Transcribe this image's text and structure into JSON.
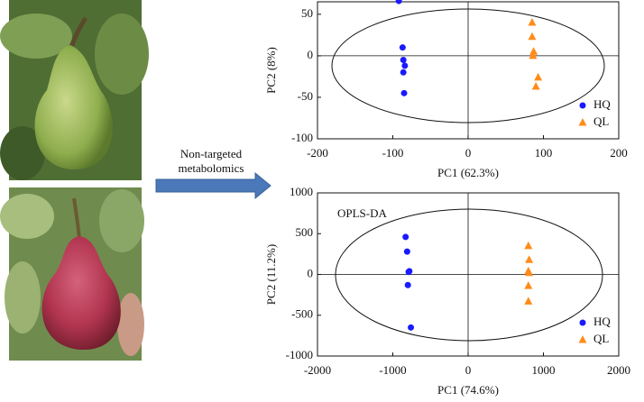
{
  "arrow_label": [
    "Non-targeted",
    "metabolomics"
  ],
  "chart_data": [
    {
      "type": "scatter",
      "xlabel": "PC1 (62.3%)",
      "ylabel": "PC2 (8%)",
      "xlim": [
        -200,
        200
      ],
      "ylim": [
        -100,
        65
      ],
      "xticks": [
        -200,
        -100,
        0,
        100,
        200
      ],
      "yticks": [
        -100,
        -50,
        0,
        50
      ],
      "legend": "lower right",
      "series": [
        {
          "name": "HQ",
          "color": "#1a1aff",
          "marker": "circle",
          "x": [
            -92,
            -87,
            -86,
            -84,
            -86,
            -85
          ],
          "y": [
            66,
            10,
            -5,
            -12,
            -20,
            -45
          ]
        },
        {
          "name": "QL",
          "color": "#ff8c1a",
          "marker": "triangle",
          "x": [
            85,
            85,
            87,
            86,
            93,
            90
          ],
          "y": [
            40,
            23,
            5,
            0,
            -26,
            -37
          ]
        }
      ]
    },
    {
      "type": "scatter",
      "xlabel": "PC1 (74.6%)",
      "ylabel": "PC2 (11.2%)",
      "annotation": "OPLS-DA",
      "xlim": [
        -2000,
        2000
      ],
      "ylim": [
        -1000,
        1000
      ],
      "xticks": [
        -2000,
        -1000,
        0,
        1000,
        2000
      ],
      "yticks": [
        -1000,
        -500,
        0,
        500,
        1000
      ],
      "legend": "lower right",
      "series": [
        {
          "name": "HQ",
          "color": "#1a1aff",
          "marker": "circle",
          "x": [
            -830,
            -810,
            -780,
            -790,
            -800,
            -760
          ],
          "y": [
            460,
            280,
            40,
            30,
            -130,
            -650
          ]
        },
        {
          "name": "QL",
          "color": "#ff8c1a",
          "marker": "triangle",
          "x": [
            800,
            810,
            800,
            810,
            800,
            800
          ],
          "y": [
            350,
            180,
            40,
            20,
            -140,
            -330
          ]
        }
      ]
    }
  ]
}
